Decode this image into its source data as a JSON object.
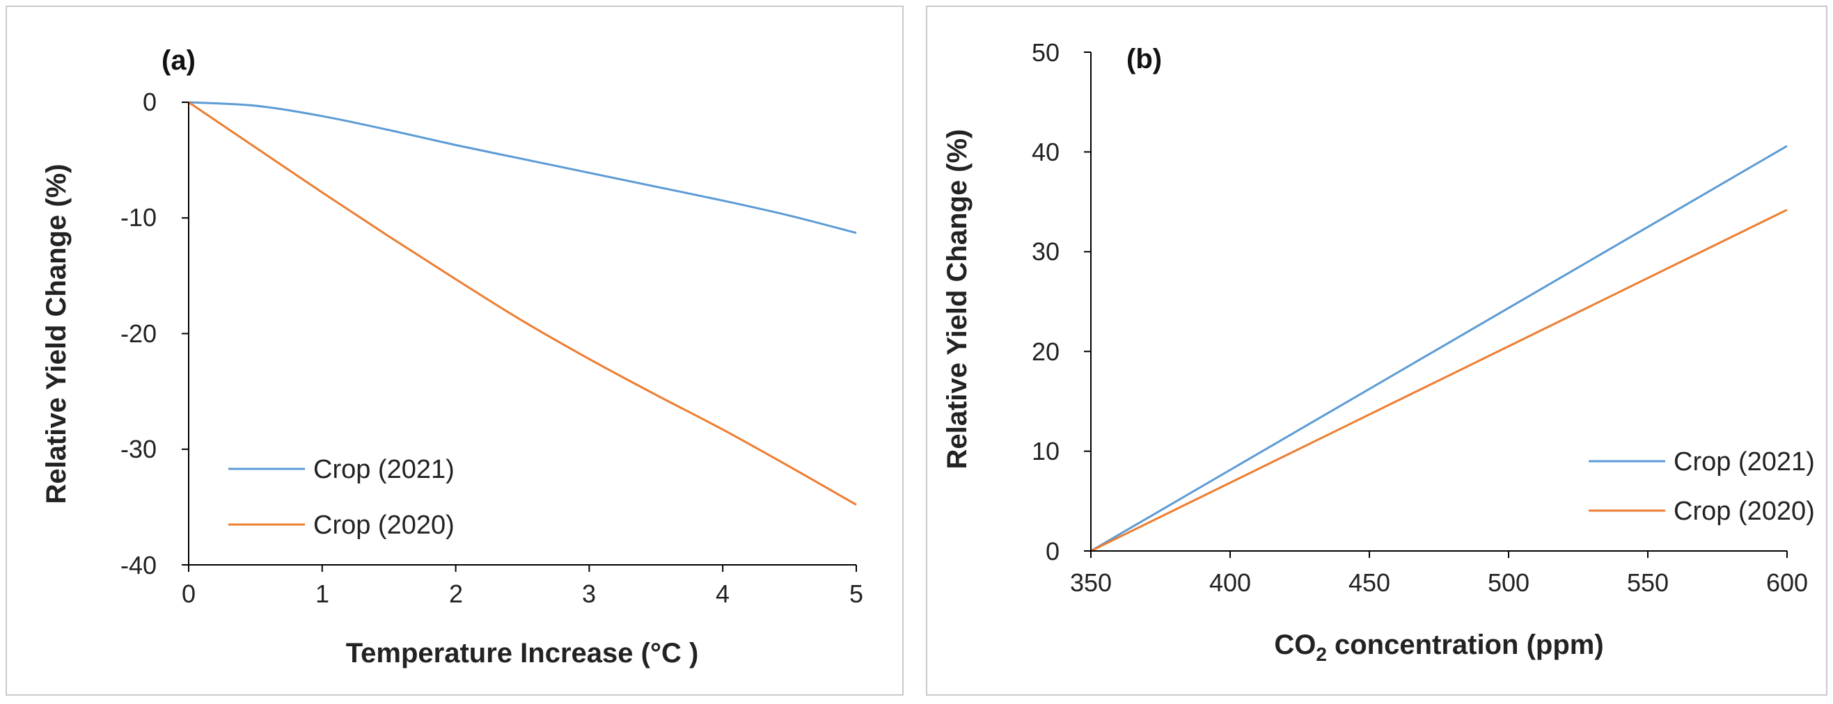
{
  "colors": {
    "crop2021": "#5b9bd5",
    "crop2020": "#ed7d31",
    "axis": "#000000"
  },
  "chart_data": [
    {
      "type": "line",
      "panel_label": "(a)",
      "xlabel": "Temperature Increase (°C )",
      "ylabel": "Relative Yield Change (%)",
      "xlim": [
        0,
        5
      ],
      "ylim": [
        -40,
        0
      ],
      "xticks": [
        0,
        1,
        2,
        3,
        4,
        5
      ],
      "yticks": [
        0,
        -10,
        -20,
        -30,
        -40
      ],
      "legend_position": "bottom-left",
      "series": [
        {
          "name": "Crop (2021)",
          "color": "#5b9bd5",
          "x": [
            0,
            0.5,
            1,
            1.5,
            2,
            2.5,
            3,
            3.5,
            4,
            4.5,
            5
          ],
          "y": [
            0,
            -0.3,
            -1.2,
            -2.4,
            -3.7,
            -4.9,
            -6.1,
            -7.3,
            -8.5,
            -9.8,
            -11.3
          ]
        },
        {
          "name": "Crop (2020)",
          "color": "#ed7d31",
          "x": [
            0,
            0.5,
            1,
            1.5,
            2,
            2.5,
            3,
            3.5,
            4,
            4.5,
            5
          ],
          "y": [
            0,
            -3.9,
            -7.8,
            -11.6,
            -15.3,
            -18.9,
            -22.2,
            -25.3,
            -28.3,
            -31.5,
            -34.8
          ]
        }
      ]
    },
    {
      "type": "line",
      "panel_label": "(b)",
      "xlabel_main": "CO",
      "xlabel_sub": "2",
      "xlabel_rest": " concentration (ppm)",
      "ylabel": "Relative Yield Change (%)",
      "xlim": [
        350,
        600
      ],
      "ylim": [
        0,
        50
      ],
      "xticks": [
        350,
        400,
        450,
        500,
        550,
        600
      ],
      "yticks": [
        0,
        10,
        20,
        30,
        40,
        50
      ],
      "legend_position": "bottom-right",
      "series": [
        {
          "name": "Crop (2021)",
          "color": "#5b9bd5",
          "x": [
            350,
            600
          ],
          "y": [
            0,
            40.6
          ]
        },
        {
          "name": "Crop (2020)",
          "color": "#ed7d31",
          "x": [
            350,
            600
          ],
          "y": [
            0,
            34.2
          ]
        }
      ]
    }
  ]
}
